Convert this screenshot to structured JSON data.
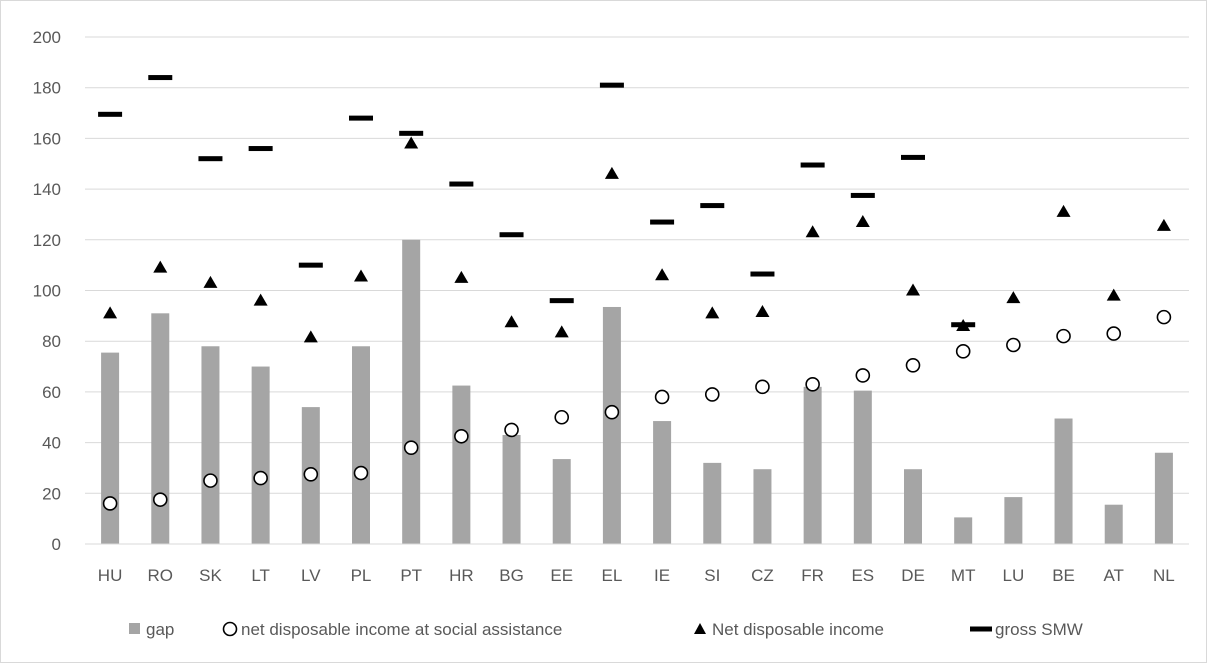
{
  "chart_data": {
    "type": "bar",
    "categories": [
      "HU",
      "RO",
      "SK",
      "LT",
      "LV",
      "PL",
      "PT",
      "HR",
      "BG",
      "EE",
      "EL",
      "IE",
      "SI",
      "CZ",
      "FR",
      "ES",
      "DE",
      "MT",
      "LU",
      "BE",
      "AT",
      "NL"
    ],
    "ylim": [
      0,
      200
    ],
    "yticks": [
      0,
      20,
      40,
      60,
      80,
      100,
      120,
      140,
      160,
      180,
      200
    ],
    "grid": true,
    "legend_position": "bottom",
    "series": [
      {
        "name": "gap",
        "mark": "bar",
        "color": "#a5a5a5",
        "values": [
          75.5,
          91,
          78,
          70,
          54,
          78,
          120,
          62.5,
          43,
          33.5,
          93.5,
          48.5,
          32,
          29.5,
          62,
          60.5,
          29.5,
          10.5,
          18.5,
          49.5,
          15.5,
          36
        ]
      },
      {
        "name": "net disposable income at social assistance",
        "mark": "circle",
        "color": "#000000",
        "values": [
          16,
          17.5,
          25,
          26,
          27.5,
          28,
          38,
          42.5,
          45,
          50,
          52,
          58,
          59,
          62,
          63,
          66.5,
          70.5,
          76,
          78.5,
          82,
          83,
          89.5
        ]
      },
      {
        "name": "Net disposable income",
        "mark": "triangle",
        "color": "#000000",
        "values": [
          91,
          109,
          103,
          96,
          81.5,
          105.5,
          158,
          105,
          87.5,
          83.5,
          146,
          106,
          91,
          91.5,
          123,
          127,
          100,
          86,
          97,
          131,
          98,
          125.5
        ]
      },
      {
        "name": "gross SMW",
        "mark": "dash",
        "color": "#000000",
        "values": [
          169.5,
          184,
          152,
          156,
          110,
          168,
          162,
          142,
          122,
          96,
          181,
          127,
          133.5,
          106.5,
          149.5,
          137.5,
          152.5,
          86.5,
          null,
          null,
          null,
          null
        ]
      }
    ]
  }
}
